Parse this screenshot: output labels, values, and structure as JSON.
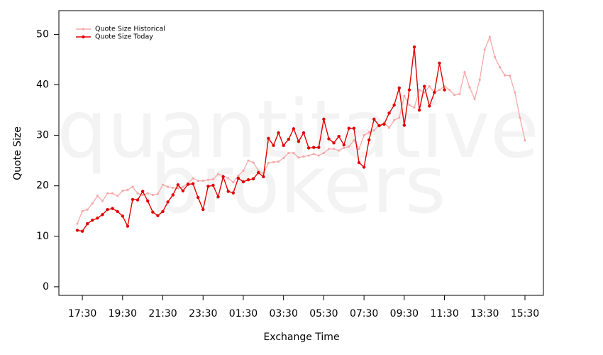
{
  "chart_data": {
    "type": "line",
    "x_label": "Exchange Time",
    "y_label": "Quote Size",
    "watermark": [
      "quantitative",
      "brokers"
    ],
    "categories": [
      null,
      "17:30",
      null,
      null,
      null,
      null,
      null,
      null,
      null,
      "19:30",
      null,
      null,
      null,
      null,
      null,
      null,
      null,
      "21:30",
      null,
      null,
      null,
      null,
      null,
      null,
      null,
      "23:30",
      null,
      null,
      null,
      null,
      null,
      null,
      null,
      "01:30",
      null,
      null,
      null,
      null,
      null,
      null,
      null,
      "03:30",
      null,
      null,
      null,
      null,
      null,
      null,
      null,
      "05:30",
      null,
      null,
      null,
      null,
      null,
      null,
      null,
      "07:30",
      null,
      null,
      null,
      null,
      null,
      null,
      null,
      "09:30",
      null,
      null,
      null,
      null,
      null,
      null,
      null,
      "11:30",
      null,
      null,
      null,
      null,
      null,
      null,
      null,
      "13:30",
      null,
      null,
      null,
      null,
      null,
      null,
      null,
      "15:30"
    ],
    "series": [
      {
        "name": "Quote Size Historical",
        "color": "#f7a8a8",
        "values": [
          12.5,
          15,
          15.3,
          16.5,
          18,
          17,
          18.5,
          18.5,
          18,
          19,
          19.2,
          19.8,
          18.5,
          18.2,
          18.5,
          18.2,
          18.4,
          20.2,
          19.8,
          19.6,
          19.5,
          19.8,
          20.5,
          21.5,
          21,
          21,
          21.2,
          21.3,
          22.3,
          22,
          21.5,
          20.7,
          22,
          23,
          25,
          24.6,
          23,
          22.5,
          24.5,
          24.7,
          24.8,
          25.5,
          26.5,
          26.5,
          25.6,
          25.8,
          26,
          26.3,
          26,
          26.5,
          27.3,
          27.3,
          27,
          27.5,
          27.8,
          29,
          27.3,
          30,
          30.6,
          31,
          32,
          32.5,
          31.5,
          33,
          33.5,
          37.8,
          36,
          35.5,
          39,
          38.5,
          39.7,
          38.5,
          39,
          39.7,
          39,
          38,
          38.2,
          42.5,
          39.5,
          37.2,
          41,
          47,
          49.5,
          45.5,
          43.5,
          41.9,
          41.8,
          38.5,
          33.5,
          29
        ]
      },
      {
        "name": "Quote Size Today",
        "color": "#e00000",
        "values": [
          11.2,
          11,
          12.5,
          13.2,
          13.6,
          14.3,
          15.3,
          15.5,
          14.9,
          14,
          12,
          17.3,
          17.2,
          18.9,
          17,
          14.8,
          14.1,
          14.9,
          16.8,
          18.2,
          20.2,
          19,
          20.3,
          20.4,
          17.7,
          15.3,
          19.9,
          20.1,
          17.8,
          21.8,
          18.9,
          18.6,
          21.5,
          20.8,
          21.2,
          21.4,
          22.6,
          21.8,
          29.4,
          28,
          30.5,
          28,
          29.2,
          31.3,
          28.8,
          30.5,
          27.5,
          27.6,
          27.6,
          33.2,
          29.3,
          28.5,
          29.8,
          28.1,
          31.4,
          31.4,
          24.6,
          23.7,
          29.1,
          33.2,
          31.9,
          32.2,
          34.4,
          36,
          39.4,
          32,
          39,
          47.5,
          35,
          39.7,
          35.8,
          38.5,
          44.3,
          39,
          null,
          null,
          null,
          null,
          null,
          null,
          null,
          null,
          null,
          null,
          null,
          null,
          null,
          null,
          null,
          null
        ]
      }
    ],
    "ylim": [
      -1.7,
      54.7
    ],
    "yticks": [
      0,
      10,
      20,
      30,
      40,
      50
    ],
    "grid": false,
    "legend": "top-left"
  }
}
